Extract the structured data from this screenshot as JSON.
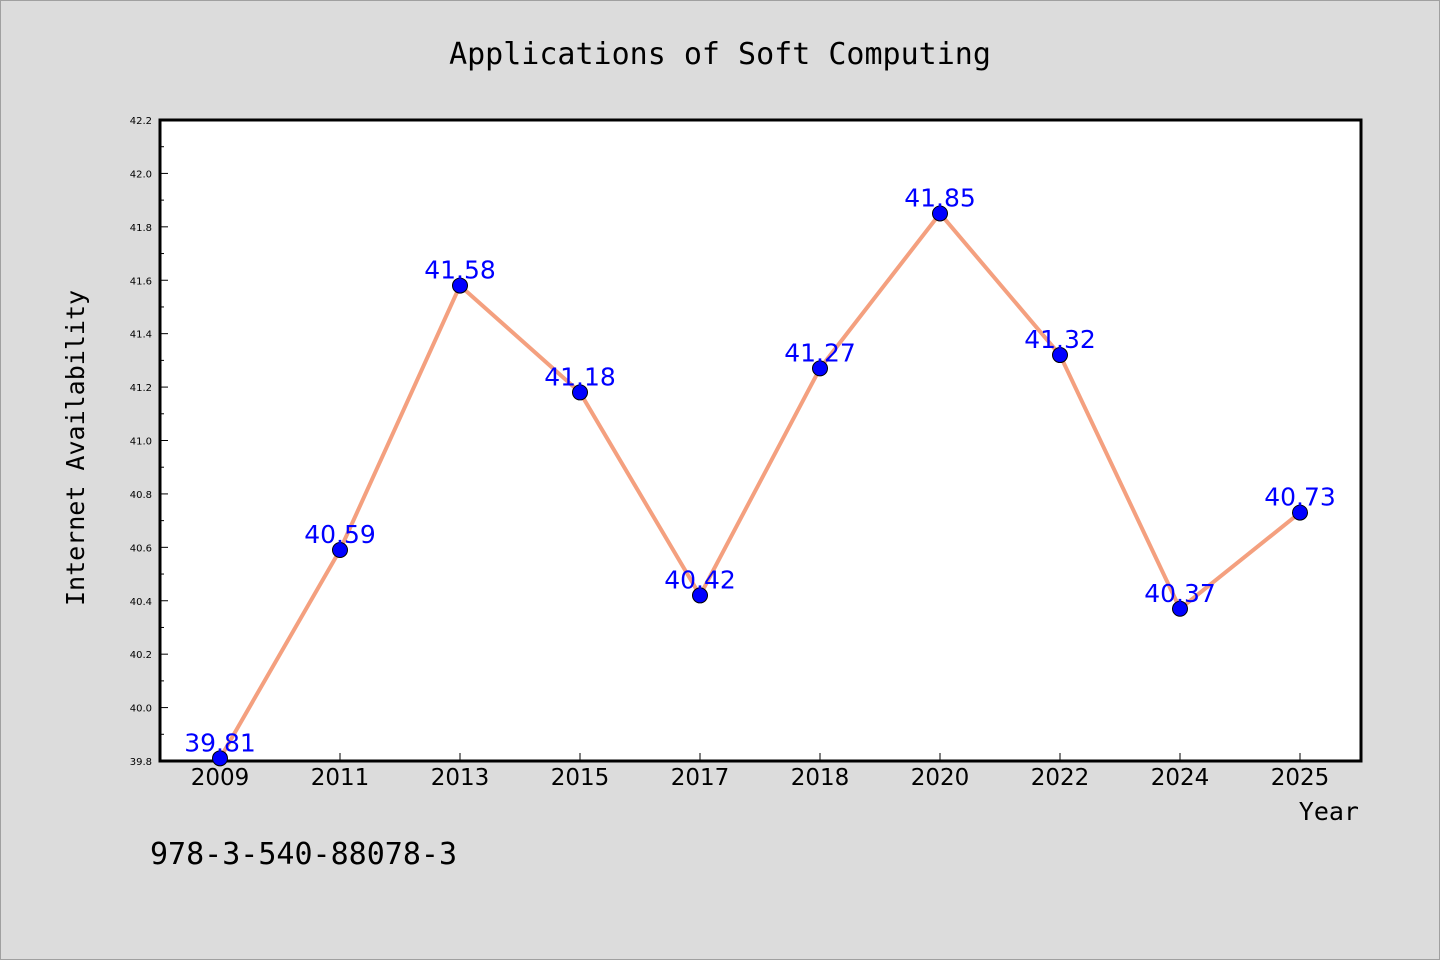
{
  "chart_data": {
    "type": "line",
    "title": "Applications of Soft Computing",
    "xlabel": "Year",
    "ylabel": "Internet Availability",
    "categories": [
      "2009",
      "2011",
      "2013",
      "2015",
      "2017",
      "2018",
      "2020",
      "2022",
      "2024",
      "2025"
    ],
    "values": [
      39.81,
      40.59,
      41.58,
      41.18,
      40.42,
      41.27,
      41.85,
      41.32,
      40.37,
      40.73
    ],
    "data_labels": [
      "39.81",
      "40.59",
      "41.58",
      "41.18",
      "40.42",
      "41.27",
      "41.85",
      "41.32",
      "40.37",
      "40.73"
    ],
    "ylim": [
      39.8,
      42.2
    ],
    "yticks": [
      "39.8",
      "40.0",
      "40.2",
      "40.4",
      "40.6",
      "40.8",
      "41.0",
      "41.2",
      "41.4",
      "41.6",
      "41.8",
      "42.0",
      "42.2"
    ],
    "grid": false,
    "colors": {
      "line": "#f4a07f",
      "marker": "#0000ff",
      "label": "#0000ff",
      "background": "#dcdcdc",
      "plot_bg": "#ffffff"
    }
  },
  "footer": {
    "isbn": "978-3-540-88078-3"
  }
}
